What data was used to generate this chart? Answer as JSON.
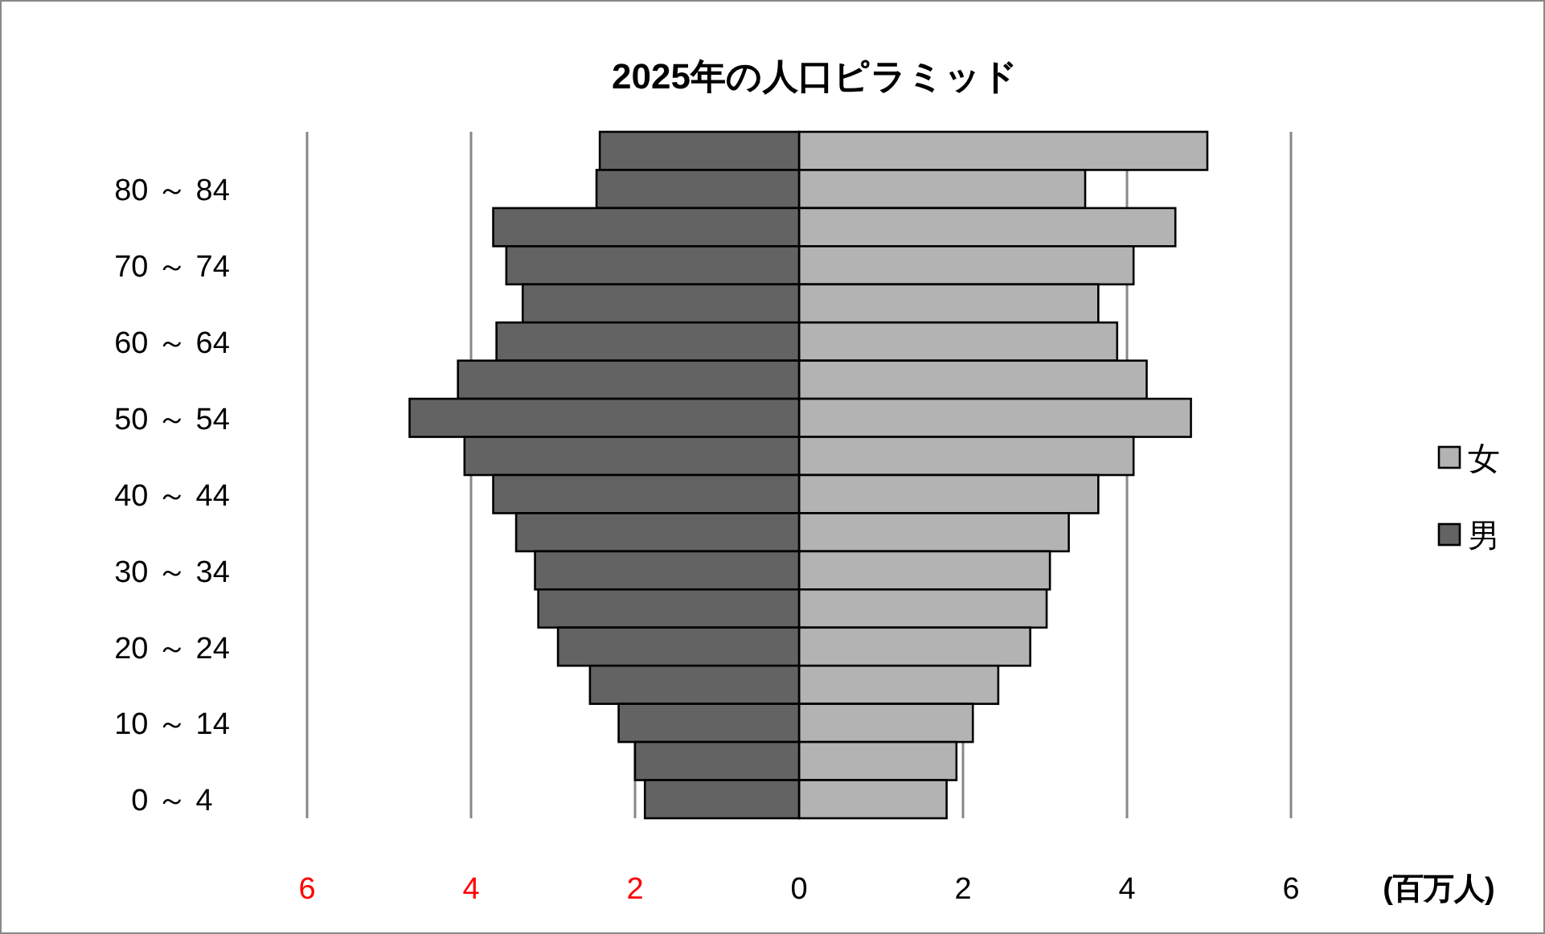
{
  "chart_data": {
    "type": "bar",
    "orientation": "horizontal",
    "title": "2025年の人口ピラミッド",
    "xlabel": "(百万人)",
    "categories": [
      null,
      "80 ～ 84",
      null,
      "70 ～ 74",
      null,
      "60 ～ 64",
      null,
      "50 ～ 54",
      null,
      "40 ～ 44",
      null,
      "30 ～ 34",
      null,
      "20 ～ 24",
      null,
      "10 ～ 14",
      null,
      "0 ～ 4"
    ],
    "series": [
      {
        "name": "女",
        "color": "#b3b3b3",
        "values": [
          4.98,
          3.49,
          4.59,
          4.08,
          3.65,
          3.88,
          4.24,
          4.78,
          4.08,
          3.65,
          3.29,
          3.06,
          3.02,
          2.82,
          2.43,
          2.12,
          1.92,
          1.8
        ]
      },
      {
        "name": "男",
        "color": "#636363",
        "values": [
          -2.43,
          -2.47,
          -3.73,
          -3.57,
          -3.37,
          -3.69,
          -4.16,
          -4.75,
          -4.08,
          -3.73,
          -3.45,
          -3.22,
          -3.18,
          -2.94,
          -2.55,
          -2.2,
          -2.0,
          -1.88
        ]
      }
    ],
    "xlim": [
      -6,
      6
    ],
    "xticks": [
      {
        "value": -6,
        "label": "6"
      },
      {
        "value": -4,
        "label": "4"
      },
      {
        "value": -2,
        "label": "2"
      },
      0,
      2,
      4,
      6
    ],
    "grid": "x",
    "legend": "right",
    "stacked": true
  }
}
